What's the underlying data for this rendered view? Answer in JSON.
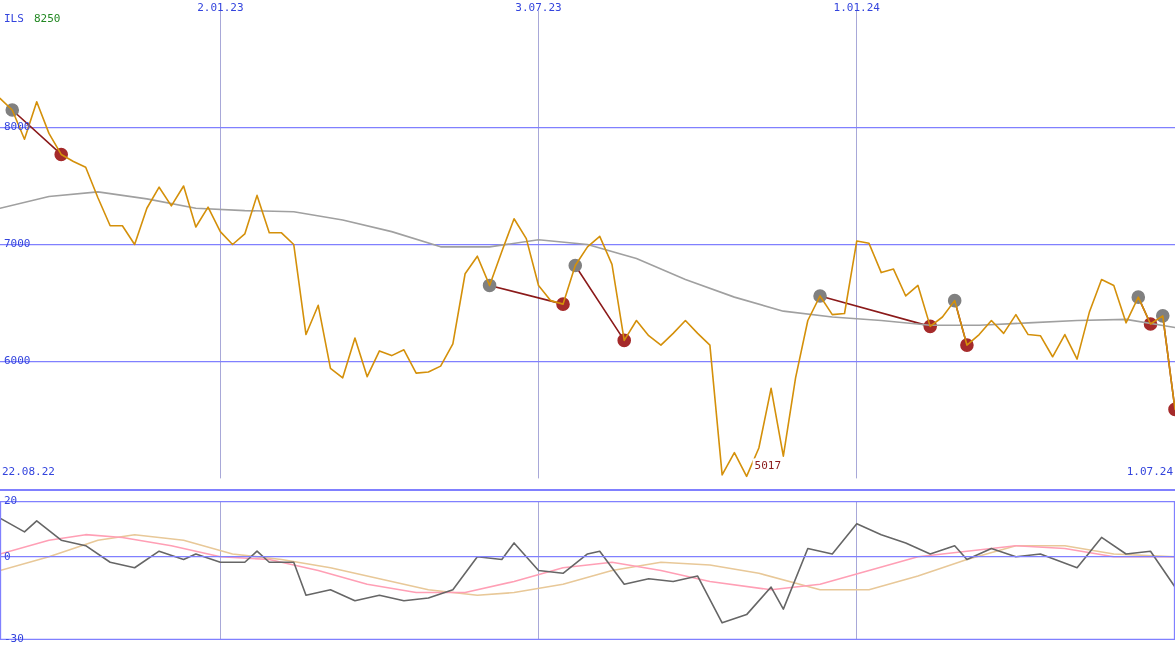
{
  "chart_data": [
    {
      "type": "line",
      "ylabel": "ILS",
      "x": [
        "2022-08-29",
        "2022-09-05",
        "2022-09-12",
        "2022-09-19",
        "2022-09-26",
        "2022-10-03",
        "2022-10-10",
        "2022-10-17",
        "2022-10-24",
        "2022-10-31",
        "2022-11-07",
        "2022-11-14",
        "2022-11-21",
        "2022-11-28",
        "2022-12-05",
        "2022-12-12",
        "2022-12-19",
        "2022-12-26",
        "2023-01-02",
        "2023-01-09",
        "2023-01-16",
        "2023-01-23",
        "2023-01-30",
        "2023-02-06",
        "2023-02-13",
        "2023-02-20",
        "2023-02-27",
        "2023-03-06",
        "2023-03-13",
        "2023-03-20",
        "2023-03-27",
        "2023-04-03",
        "2023-04-10",
        "2023-04-17",
        "2023-04-24",
        "2023-05-01",
        "2023-05-08",
        "2023-05-15",
        "2023-05-22",
        "2023-05-29",
        "2023-06-05",
        "2023-06-12",
        "2023-06-19",
        "2023-06-26",
        "2023-07-03",
        "2023-07-10",
        "2023-07-17",
        "2023-07-24",
        "2023-07-31",
        "2023-08-07",
        "2023-08-14",
        "2023-08-21",
        "2023-08-28",
        "2023-09-04",
        "2023-09-11",
        "2023-09-18",
        "2023-09-25",
        "2023-10-02",
        "2023-10-09",
        "2023-10-16",
        "2023-10-23",
        "2023-10-30",
        "2023-11-06",
        "2023-11-13",
        "2023-11-20",
        "2023-11-27",
        "2023-12-04",
        "2023-12-11",
        "2023-12-18",
        "2023-12-25",
        "2024-01-01",
        "2024-01-08",
        "2024-01-15",
        "2024-01-22",
        "2024-01-29",
        "2024-02-05",
        "2024-02-12",
        "2024-02-19",
        "2024-02-26",
        "2024-03-04",
        "2024-03-11",
        "2024-03-18",
        "2024-03-25",
        "2024-04-01",
        "2024-04-08",
        "2024-04-15",
        "2024-04-22",
        "2024-04-29",
        "2024-05-06",
        "2024-05-13",
        "2024-05-20",
        "2024-05-27",
        "2024-06-03",
        "2024-06-10",
        "2024-06-17",
        "2024-06-24",
        "2024-07-01"
      ],
      "series": [
        {
          "color": "#d4900a",
          "marker": "none",
          "values": [
            8250,
            8150,
            7900,
            8220,
            7950,
            7770,
            7710,
            7660,
            7400,
            7160,
            7160,
            7000,
            7310,
            7490,
            7330,
            7500,
            7150,
            7320,
            7110,
            7000,
            7090,
            7420,
            7100,
            7100,
            7000,
            6230,
            6480,
            5940,
            5860,
            6200,
            5870,
            6090,
            6050,
            6100,
            5900,
            5910,
            5960,
            6150,
            6750,
            6900,
            6650,
            6940,
            7220,
            7050,
            6650,
            6520,
            6490,
            6820,
            6980,
            7070,
            6830,
            6180,
            6350,
            6220,
            6140,
            6240,
            6350,
            6240,
            6140,
            5030,
            5220,
            5017,
            5260,
            5770,
            5190,
            5860,
            6350,
            6560,
            6400,
            6410,
            7030,
            7010,
            6760,
            6790,
            6560,
            6650,
            6300,
            6380,
            6520,
            6140,
            6230,
            6350,
            6240,
            6400,
            6230,
            6220,
            6040,
            6230,
            6020,
            6420,
            6700,
            6650,
            6330,
            6550,
            6320,
            6390,
            5590
          ]
        },
        {
          "color": "#a0a0a0",
          "marker": "none",
          "x": [
            "2022-08-29",
            "2022-09-26",
            "2022-10-24",
            "2022-11-21",
            "2022-12-19",
            "2023-01-16",
            "2023-02-13",
            "2023-03-13",
            "2023-04-10",
            "2023-05-08",
            "2023-06-05",
            "2023-07-03",
            "2023-07-31",
            "2023-08-28",
            "2023-09-25",
            "2023-10-23",
            "2023-11-20",
            "2023-12-18",
            "2024-01-15",
            "2024-02-12",
            "2024-03-11",
            "2024-04-08",
            "2024-05-06",
            "2024-06-03",
            "2024-07-01"
          ],
          "values": [
            7310,
            7410,
            7450,
            7390,
            7310,
            7290,
            7280,
            7210,
            7110,
            6980,
            6980,
            7040,
            7000,
            6880,
            6700,
            6550,
            6430,
            6380,
            6350,
            6310,
            6310,
            6330,
            6350,
            6360,
            6290
          ]
        },
        {
          "color": "#8b1a1a",
          "marker": "circle",
          "colors": [
            "#808080",
            "#a52a2a"
          ],
          "x": [
            "2022-09-05",
            "2022-10-03"
          ],
          "values": [
            8150,
            7770
          ]
        },
        {
          "color": "#8b1a1a",
          "marker": "circle",
          "colors": [
            "#808080",
            "#a52a2a"
          ],
          "x": [
            "2023-06-05",
            "2023-07-17"
          ],
          "values": [
            6650,
            6490
          ]
        },
        {
          "color": "#8b1a1a",
          "marker": "circle",
          "colors": [
            "#808080",
            "#a52a2a"
          ],
          "x": [
            "2023-07-24",
            "2023-08-21"
          ],
          "values": [
            6820,
            6180
          ]
        },
        {
          "color": "#8b1a1a",
          "marker": "circle",
          "colors": [
            "#808080",
            "#a52a2a"
          ],
          "x": [
            "2023-12-11",
            "2024-02-12"
          ],
          "values": [
            6560,
            6300
          ]
        },
        {
          "color": "#8b1a1a",
          "marker": "circle",
          "colors": [
            "#808080",
            "#a52a2a"
          ],
          "x": [
            "2024-02-26",
            "2024-03-04"
          ],
          "values": [
            6520,
            6140
          ]
        },
        {
          "color": "#8b1a1a",
          "marker": "circle",
          "colors": [
            "#808080",
            "#a52a2a"
          ],
          "x": [
            "2024-06-10",
            "2024-06-17"
          ],
          "values": [
            6550,
            6320
          ]
        },
        {
          "color": "#8b1a1a",
          "marker": "circle",
          "colors": [
            "#808080",
            "#a52a2a"
          ],
          "x": [
            "2024-06-24",
            "2024-07-01"
          ],
          "values": [
            6390,
            5590
          ]
        }
      ],
      "xlim": [
        "2022-08-29",
        "2024-07-01"
      ],
      "xticks": [
        {
          "value": "2023-01-02",
          "label": "2.01.23"
        },
        {
          "value": "2023-07-03",
          "label": "3.07.23"
        },
        {
          "value": "2024-01-01",
          "label": "1.01.24"
        }
      ],
      "ylim": [
        5000,
        9000
      ],
      "yticks": [
        6000,
        7000,
        8000
      ],
      "grid": true,
      "legend": false,
      "annotations": [
        "22.08.22",
        "1.07.24",
        "8250",
        {
          "text": "5017",
          "x": "2023-10-30",
          "y": 5017
        }
      ]
    },
    {
      "type": "line",
      "series": [
        {
          "color": "#666666",
          "marker": "none",
          "x": [
            "2022-08-29",
            "2022-09-12",
            "2022-09-19",
            "2022-10-03",
            "2022-10-17",
            "2022-10-31",
            "2022-11-14",
            "2022-11-28",
            "2022-12-12",
            "2022-12-19",
            "2023-01-02",
            "2023-01-16",
            "2023-01-23",
            "2023-01-30",
            "2023-02-13",
            "2023-02-20",
            "2023-03-06",
            "2023-03-20",
            "2023-04-03",
            "2023-04-17",
            "2023-05-01",
            "2023-05-15",
            "2023-05-29",
            "2023-06-12",
            "2023-06-19",
            "2023-07-03",
            "2023-07-17",
            "2023-07-31",
            "2023-08-07",
            "2023-08-21",
            "2023-09-04",
            "2023-09-18",
            "2023-10-02",
            "2023-10-16",
            "2023-10-30",
            "2023-11-13",
            "2023-11-20",
            "2023-12-04",
            "2023-12-18",
            "2024-01-01",
            "2024-01-15",
            "2024-01-29",
            "2024-02-12",
            "2024-02-26",
            "2024-03-04",
            "2024-03-18",
            "2024-04-01",
            "2024-04-15",
            "2024-05-06",
            "2024-05-20",
            "2024-06-03",
            "2024-06-17",
            "2024-07-01"
          ],
          "values": [
            14,
            9,
            13,
            6,
            4,
            -2,
            -4,
            2,
            -1,
            1,
            -2,
            -2,
            2,
            -2,
            -2,
            -14,
            -12,
            -16,
            -14,
            -16,
            -15,
            -12,
            0,
            -1,
            5,
            -5,
            -6,
            1,
            2,
            -10,
            -8,
            -9,
            -7,
            -24,
            -21,
            -11,
            -19,
            3,
            1,
            12,
            8,
            5,
            1,
            4,
            -1,
            3,
            0,
            1,
            -4,
            7,
            1,
            2,
            -11
          ]
        },
        {
          "color": "#ff9fb5",
          "marker": "none",
          "x": [
            "2022-08-29",
            "2022-09-26",
            "2022-10-17",
            "2022-11-07",
            "2022-12-05",
            "2023-01-02",
            "2023-01-30",
            "2023-02-27",
            "2023-03-27",
            "2023-04-24",
            "2023-05-22",
            "2023-06-19",
            "2023-07-17",
            "2023-08-14",
            "2023-09-11",
            "2023-10-09",
            "2023-11-13",
            "2023-12-11",
            "2024-01-08",
            "2024-02-05",
            "2024-03-04",
            "2024-04-01",
            "2024-04-29",
            "2024-05-27",
            "2024-07-01"
          ],
          "values": [
            1,
            6,
            8,
            7,
            4,
            0,
            -1,
            -5,
            -10,
            -13,
            -13,
            -9,
            -4,
            -2,
            -5,
            -9,
            -12,
            -10,
            -5,
            0,
            2,
            4,
            3,
            0,
            0
          ]
        },
        {
          "color": "#e8c898",
          "marker": "none",
          "x": [
            "2022-08-29",
            "2022-09-26",
            "2022-10-24",
            "2022-11-14",
            "2022-12-12",
            "2023-01-09",
            "2023-02-06",
            "2023-03-06",
            "2023-04-03",
            "2023-05-01",
            "2023-05-29",
            "2023-06-19",
            "2023-07-17",
            "2023-08-14",
            "2023-09-11",
            "2023-10-09",
            "2023-11-06",
            "2023-12-11",
            "2024-01-08",
            "2024-02-05",
            "2024-03-04",
            "2024-04-01",
            "2024-04-29",
            "2024-05-27",
            "2024-07-01"
          ],
          "values": [
            -5,
            0,
            6,
            8,
            6,
            1,
            -1,
            -4,
            -8,
            -12,
            -14,
            -13,
            -10,
            -5,
            -2,
            -3,
            -6,
            -12,
            -12,
            -7,
            -1,
            4,
            4,
            1,
            0
          ]
        }
      ],
      "xlim": [
        "2022-08-29",
        "2024-07-01"
      ],
      "xticks": [
        {
          "value": "2023-01-02",
          "label": null
        },
        {
          "value": "2023-07-03",
          "label": null
        },
        {
          "value": "2024-01-01",
          "label": null
        }
      ],
      "ylim": [
        -30,
        20
      ],
      "yticks": [
        -30,
        0,
        20
      ],
      "grid": "x",
      "ref_lines": [
        {
          "axis": "y",
          "value": 0,
          "color": "#8080ff"
        }
      ],
      "legend": false,
      "tick_labels": "y"
    }
  ]
}
